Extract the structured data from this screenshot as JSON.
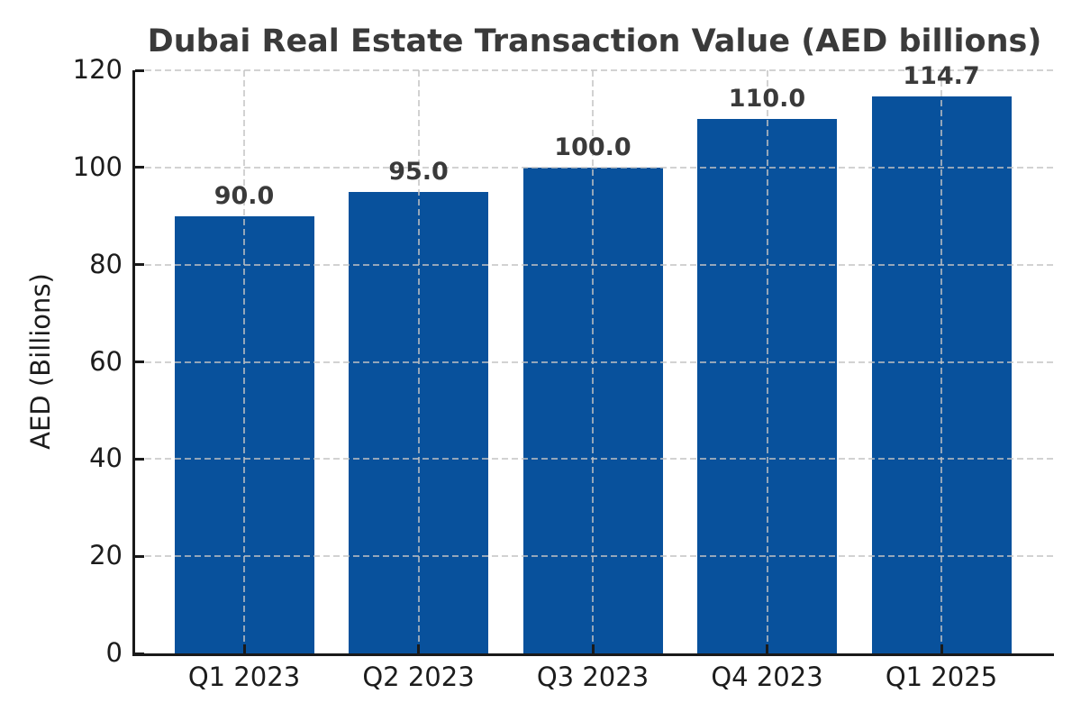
{
  "chart_data": {
    "type": "bar",
    "title": "Dubai Real Estate Transaction Value (AED billions)",
    "xlabel": "",
    "ylabel": "AED (Billions)",
    "categories": [
      "Q1 2023",
      "Q2 2023",
      "Q3 2023",
      "Q4 2023",
      "Q1 2025"
    ],
    "values": [
      90.0,
      95.0,
      100.0,
      110.0,
      114.7
    ],
    "bar_labels": [
      "90.0",
      "95.0",
      "100.0",
      "110.0",
      "114.7"
    ],
    "yticks": [
      0,
      20,
      40,
      60,
      80,
      100,
      120
    ],
    "ytick_labels": [
      "0",
      "20",
      "40",
      "60",
      "80",
      "100",
      "120"
    ],
    "ylim": [
      0,
      120
    ],
    "grid": "dashed-both-axes-over-bars",
    "legend_position": "none",
    "colors": {
      "bar": "#08519c",
      "axis": "#1a1a1a",
      "grid": "#cfcfcf",
      "title_text": "#3a3a3a",
      "tick_text": "#1c1c1c"
    }
  }
}
